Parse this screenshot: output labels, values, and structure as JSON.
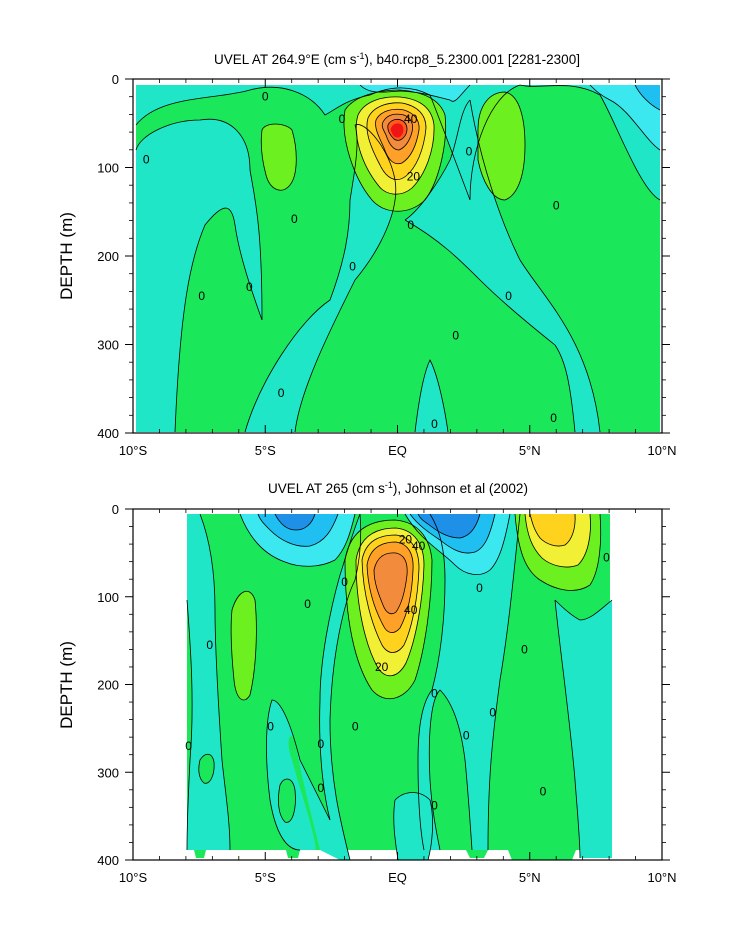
{
  "colors": {
    "c_neg20": "#1E90E8",
    "c_neg10": "#1FBFF2",
    "c_neg5": "#3CE8F0",
    "c_0": "#20E6C8",
    "c_5": "#1AE85A",
    "c_10": "#6CF020",
    "c_20": "#F2F035",
    "c_25": "#FFD21E",
    "c_30": "#FFA028",
    "c_40": "#F28C3C",
    "c_50": "#FF5A1E",
    "c_60": "#F01414"
  },
  "chart_data": [
    {
      "type": "contour",
      "title_main": "UVEL AT 264.9°E (cm s",
      "title_sup": "-1",
      "title_rest": "), b40.rcp8_5.2300.001 [2281-2300]",
      "ylabel": "DEPTH (m)",
      "xlabel": "",
      "xlim": [
        -10,
        10
      ],
      "ylim": [
        400,
        0
      ],
      "x_ticks": [
        -10,
        -5,
        0,
        5,
        10
      ],
      "x_tick_labels": [
        "10°S",
        "5°S",
        "EQ",
        "5°N",
        "10°N"
      ],
      "y_ticks": [
        0,
        100,
        200,
        300,
        400
      ],
      "y_tick_labels": [
        "0",
        "100",
        "200",
        "300",
        "400"
      ],
      "contour_labels": [
        {
          "text": "0",
          "x": -9.5,
          "y": 91
        },
        {
          "text": "0",
          "x": -5.0,
          "y": 20
        },
        {
          "text": "0",
          "x": -2.1,
          "y": 45
        },
        {
          "text": "0",
          "x": -7.4,
          "y": 245
        },
        {
          "text": "0",
          "x": -5.6,
          "y": 235
        },
        {
          "text": "0",
          "x": -3.9,
          "y": 158
        },
        {
          "text": "0",
          "x": -1.7,
          "y": 212
        },
        {
          "text": "0",
          "x": -4.4,
          "y": 355
        },
        {
          "text": "0",
          "x": 2.7,
          "y": 82
        },
        {
          "text": "0",
          "x": 0.5,
          "y": 165
        },
        {
          "text": "0",
          "x": 2.2,
          "y": 290
        },
        {
          "text": "0",
          "x": 1.4,
          "y": 390
        },
        {
          "text": "0",
          "x": 4.2,
          "y": 245
        },
        {
          "text": "0",
          "x": 6.0,
          "y": 143
        },
        {
          "text": "0",
          "x": 5.9,
          "y": 383
        },
        {
          "text": "40",
          "x": 0.5,
          "y": 45
        },
        {
          "text": "20",
          "x": 0.6,
          "y": 110
        }
      ]
    },
    {
      "type": "contour",
      "title_main": "UVEL AT 265 (cm s",
      "title_sup": "-1",
      "title_rest": "), Johnson et al (2002)",
      "ylabel": "DEPTH (m)",
      "xlabel": "",
      "xlim": [
        -10,
        10
      ],
      "ylim": [
        400,
        0
      ],
      "x_ticks": [
        -10,
        -5,
        0,
        5,
        10
      ],
      "x_tick_labels": [
        "10°S",
        "5°S",
        "EQ",
        "5°N",
        "10°N"
      ],
      "y_ticks": [
        0,
        100,
        200,
        300,
        400
      ],
      "y_tick_labels": [
        "0",
        "100",
        "200",
        "300",
        "400"
      ],
      "contour_labels": [
        {
          "text": "0",
          "x": -7.1,
          "y": 155
        },
        {
          "text": "0",
          "x": -7.9,
          "y": 270
        },
        {
          "text": "0",
          "x": -4.8,
          "y": 248
        },
        {
          "text": "0",
          "x": -3.4,
          "y": 108
        },
        {
          "text": "0",
          "x": -2.0,
          "y": 83
        },
        {
          "text": "0",
          "x": -1.6,
          "y": 248
        },
        {
          "text": "0",
          "x": -2.9,
          "y": 268
        },
        {
          "text": "0",
          "x": -2.9,
          "y": 318
        },
        {
          "text": "0",
          "x": 1.4,
          "y": 210
        },
        {
          "text": "0",
          "x": 1.4,
          "y": 338
        },
        {
          "text": "0",
          "x": 3.1,
          "y": 90
        },
        {
          "text": "0",
          "x": 3.6,
          "y": 232
        },
        {
          "text": "0",
          "x": 2.6,
          "y": 258
        },
        {
          "text": "0",
          "x": 4.8,
          "y": 160
        },
        {
          "text": "0",
          "x": 5.5,
          "y": 322
        },
        {
          "text": "0",
          "x": 7.9,
          "y": 55
        },
        {
          "text": "20",
          "x": 0.3,
          "y": 35
        },
        {
          "text": "40",
          "x": 0.8,
          "y": 42
        },
        {
          "text": "40",
          "x": 0.5,
          "y": 115
        },
        {
          "text": "20",
          "x": -0.6,
          "y": 180
        }
      ]
    }
  ]
}
